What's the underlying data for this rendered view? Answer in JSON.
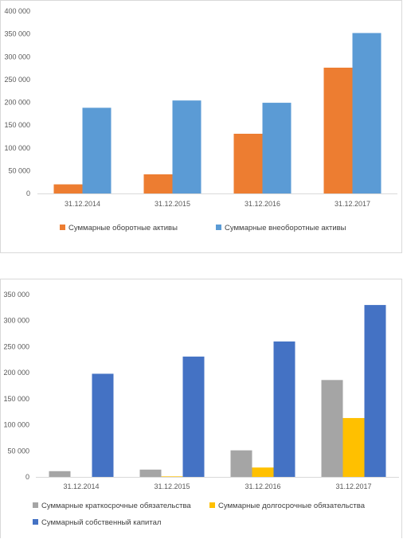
{
  "chart_data": [
    {
      "type": "bar",
      "categories": [
        "31.12.2014",
        "31.12.2015",
        "31.12.2016",
        "31.12.2017"
      ],
      "series": [
        {
          "name": "Суммарные оборотные активы",
          "color": "#ED7D31",
          "values": [
            20000,
            42000,
            131000,
            276000
          ]
        },
        {
          "name": "Суммарные внеоборотные активы",
          "color": "#5B9BD5",
          "values": [
            188000,
            204000,
            199000,
            352000
          ]
        }
      ],
      "yticks": [
        "0",
        "50 000",
        "100 000",
        "150 000",
        "200 000",
        "250 000",
        "300 000",
        "350 000",
        "400 000"
      ],
      "ylim": [
        0,
        400000
      ],
      "grid": false,
      "legend_position": "bottom"
    },
    {
      "type": "bar",
      "categories": [
        "31.12.2014",
        "31.12.2015",
        "31.12.2016",
        "31.12.2017"
      ],
      "series": [
        {
          "name": "Суммарные краткосрочные обязательства",
          "color": "#A5A5A5",
          "values": [
            11000,
            14000,
            51000,
            186000
          ]
        },
        {
          "name": "Суммарные долгосрочные обязательства",
          "color": "#FFC000",
          "values": [
            0,
            1000,
            18000,
            113000
          ]
        },
        {
          "name": "Суммарный собственный капитал",
          "color": "#4472C4",
          "values": [
            198000,
            231000,
            260000,
            330000
          ]
        }
      ],
      "yticks": [
        "0",
        "50 000",
        "100 000",
        "150 000",
        "200 000",
        "250 000",
        "300 000",
        "350 000"
      ],
      "ylim": [
        0,
        350000
      ],
      "grid": false,
      "legend_position": "bottom"
    }
  ]
}
